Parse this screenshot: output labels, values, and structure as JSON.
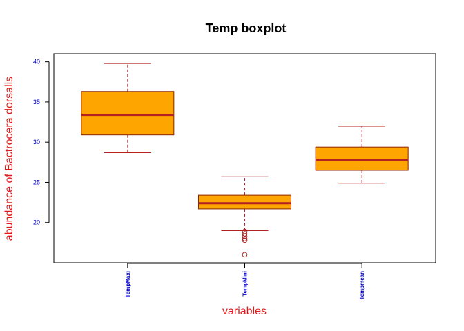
{
  "chart_data": {
    "type": "boxplot",
    "title": "Temp boxplot",
    "xlabel": "variables",
    "ylabel": "abundance of Bactrocera dorsalis",
    "ylim": [
      15,
      41
    ],
    "yticks": [
      20,
      25,
      30,
      35,
      40
    ],
    "categories": [
      "TempMaxi",
      "TempMini",
      "Tempmean"
    ],
    "boxes": [
      {
        "name": "TempMaxi",
        "whisker_low": 28.7,
        "q1": 30.9,
        "median": 33.4,
        "q3": 36.3,
        "whisker_high": 39.8,
        "outliers": []
      },
      {
        "name": "TempMini",
        "whisker_low": 19.0,
        "q1": 21.7,
        "median": 22.4,
        "q3": 23.4,
        "whisker_high": 25.7,
        "outliers": [
          18.9,
          18.6,
          18.3,
          18.0,
          17.8,
          16.0
        ]
      },
      {
        "name": "Tempmean",
        "whisker_low": 24.9,
        "q1": 26.5,
        "median": 27.8,
        "q3": 29.4,
        "whisker_high": 32.0,
        "outliers": []
      }
    ],
    "colors": {
      "box_fill": "#FFA500",
      "box_border": "#8B2500",
      "median": "#B22222",
      "whisker": "#B22222",
      "outlier": "#B22222",
      "tick_label": "#0000CC",
      "axis_label": "#E31A1C",
      "title": "#000000"
    },
    "grid": false,
    "legend": "none"
  }
}
